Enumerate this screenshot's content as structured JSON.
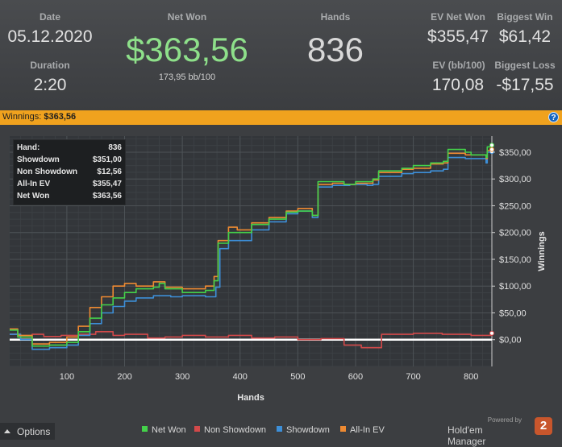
{
  "stats": {
    "date_label": "Date",
    "date_value": "05.12.2020",
    "duration_label": "Duration",
    "duration_value": "2:20",
    "netwon_label": "Net Won",
    "netwon_value": "$363,56",
    "netwon_sub": "173,95 bb/100",
    "hands_label": "Hands",
    "hands_value": "836",
    "ev_label": "EV Net Won",
    "ev_value": "$355,47",
    "evbb_label": "EV (bb/100)",
    "evbb_value": "170,08",
    "bigwin_label": "Biggest Win",
    "bigwin_value": "$61,42",
    "bigloss_label": "Biggest Loss",
    "bigloss_value": "-$17,55"
  },
  "winbar": {
    "label": "Winnings:",
    "value": "$363,56",
    "help_icon": "?"
  },
  "tooltip": {
    "rows": [
      {
        "k": "Hand:",
        "v": "836"
      },
      {
        "k": "Showdown",
        "v": "$351,00"
      },
      {
        "k": "Non Showdown",
        "v": "$12,56"
      },
      {
        "k": "All-In EV",
        "v": "$355,47"
      },
      {
        "k": "Net Won",
        "v": "$363,56"
      }
    ]
  },
  "footer": {
    "options_label": "Options",
    "powered_by": "Powered by",
    "brand_name": "Hold'em Manager",
    "brand_logo": "2"
  },
  "colors": {
    "net_won": "#44d14a",
    "non_showdown": "#d2494a",
    "showdown": "#3d8fd8",
    "all_in_ev": "#ee8a32",
    "zero_line": "#ffffff",
    "accent": "#f0a21e"
  },
  "chart_data": {
    "type": "line",
    "xlabel": "Hands",
    "ylabel": "Winnings",
    "xlim": [
      1,
      836
    ],
    "ylim": [
      -50,
      380
    ],
    "grid": true,
    "legend_position": "bottom",
    "x_ticks": [
      100,
      200,
      300,
      400,
      500,
      600,
      700,
      800
    ],
    "y_ticks": [
      0,
      50,
      100,
      150,
      200,
      250,
      300,
      350
    ],
    "y_tick_labels": [
      "$0,00",
      "$50,00",
      "$100,00",
      "$150,00",
      "$200,00",
      "$250,00",
      "$300,00",
      "$350,00"
    ],
    "series": [
      {
        "name": "Net Won",
        "color": "#44d14a",
        "points": [
          [
            1,
            18
          ],
          [
            15,
            5
          ],
          [
            40,
            -12
          ],
          [
            70,
            -10
          ],
          [
            100,
            -5
          ],
          [
            120,
            15
          ],
          [
            140,
            40
          ],
          [
            160,
            65
          ],
          [
            180,
            78
          ],
          [
            200,
            88
          ],
          [
            220,
            95
          ],
          [
            250,
            98
          ],
          [
            260,
            105
          ],
          [
            270,
            95
          ],
          [
            300,
            88
          ],
          [
            340,
            92
          ],
          [
            355,
            110
          ],
          [
            362,
            180
          ],
          [
            380,
            200
          ],
          [
            395,
            200
          ],
          [
            420,
            215
          ],
          [
            450,
            225
          ],
          [
            480,
            238
          ],
          [
            500,
            240
          ],
          [
            525,
            232
          ],
          [
            530,
            232
          ],
          [
            535,
            295
          ],
          [
            560,
            295
          ],
          [
            580,
            290
          ],
          [
            600,
            295
          ],
          [
            630,
            300
          ],
          [
            640,
            315
          ],
          [
            680,
            320
          ],
          [
            700,
            325
          ],
          [
            730,
            330
          ],
          [
            752,
            333
          ],
          [
            760,
            355
          ],
          [
            790,
            350
          ],
          [
            800,
            345
          ],
          [
            826,
            340
          ],
          [
            828,
            360
          ],
          [
            836,
            363
          ]
        ]
      },
      {
        "name": "Non Showdown",
        "color": "#d2494a",
        "points": [
          [
            1,
            10
          ],
          [
            20,
            5
          ],
          [
            40,
            10
          ],
          [
            60,
            6
          ],
          [
            90,
            8
          ],
          [
            120,
            10
          ],
          [
            150,
            15
          ],
          [
            180,
            8
          ],
          [
            200,
            10
          ],
          [
            240,
            3
          ],
          [
            270,
            5
          ],
          [
            300,
            8
          ],
          [
            340,
            5
          ],
          [
            380,
            8
          ],
          [
            420,
            3
          ],
          [
            460,
            5
          ],
          [
            500,
            0
          ],
          [
            540,
            2
          ],
          [
            580,
            -10
          ],
          [
            610,
            -15
          ],
          [
            640,
            -15
          ],
          [
            645,
            10
          ],
          [
            700,
            12
          ],
          [
            750,
            10
          ],
          [
            800,
            8
          ],
          [
            836,
            12
          ]
        ]
      },
      {
        "name": "Showdown",
        "color": "#3d8fd8",
        "points": [
          [
            1,
            10
          ],
          [
            20,
            0
          ],
          [
            40,
            -18
          ],
          [
            70,
            -15
          ],
          [
            100,
            -10
          ],
          [
            120,
            8
          ],
          [
            140,
            30
          ],
          [
            160,
            50
          ],
          [
            180,
            62
          ],
          [
            200,
            72
          ],
          [
            220,
            78
          ],
          [
            250,
            82
          ],
          [
            280,
            80
          ],
          [
            300,
            82
          ],
          [
            340,
            80
          ],
          [
            358,
            98
          ],
          [
            365,
            170
          ],
          [
            380,
            185
          ],
          [
            395,
            185
          ],
          [
            420,
            205
          ],
          [
            450,
            220
          ],
          [
            480,
            235
          ],
          [
            500,
            240
          ],
          [
            525,
            228
          ],
          [
            530,
            228
          ],
          [
            535,
            285
          ],
          [
            560,
            288
          ],
          [
            590,
            290
          ],
          [
            620,
            288
          ],
          [
            630,
            290
          ],
          [
            640,
            305
          ],
          [
            680,
            310
          ],
          [
            700,
            312
          ],
          [
            730,
            315
          ],
          [
            752,
            318
          ],
          [
            760,
            340
          ],
          [
            790,
            338
          ],
          [
            826,
            330
          ],
          [
            828,
            350
          ],
          [
            836,
            351
          ]
        ]
      },
      {
        "name": "All-In EV",
        "color": "#ee8a32",
        "points": [
          [
            1,
            20
          ],
          [
            15,
            8
          ],
          [
            40,
            -8
          ],
          [
            70,
            -5
          ],
          [
            100,
            5
          ],
          [
            120,
            25
          ],
          [
            140,
            60
          ],
          [
            160,
            80
          ],
          [
            180,
            100
          ],
          [
            200,
            105
          ],
          [
            220,
            100
          ],
          [
            250,
            108
          ],
          [
            270,
            98
          ],
          [
            300,
            95
          ],
          [
            340,
            100
          ],
          [
            355,
            118
          ],
          [
            362,
            185
          ],
          [
            380,
            210
          ],
          [
            395,
            205
          ],
          [
            420,
            218
          ],
          [
            450,
            228
          ],
          [
            480,
            240
          ],
          [
            500,
            245
          ],
          [
            525,
            232
          ],
          [
            530,
            232
          ],
          [
            535,
            290
          ],
          [
            560,
            292
          ],
          [
            580,
            290
          ],
          [
            600,
            292
          ],
          [
            630,
            298
          ],
          [
            640,
            312
          ],
          [
            680,
            318
          ],
          [
            700,
            320
          ],
          [
            730,
            328
          ],
          [
            752,
            330
          ],
          [
            760,
            348
          ],
          [
            790,
            345
          ],
          [
            826,
            338
          ],
          [
            828,
            353
          ],
          [
            836,
            355
          ]
        ]
      }
    ]
  }
}
